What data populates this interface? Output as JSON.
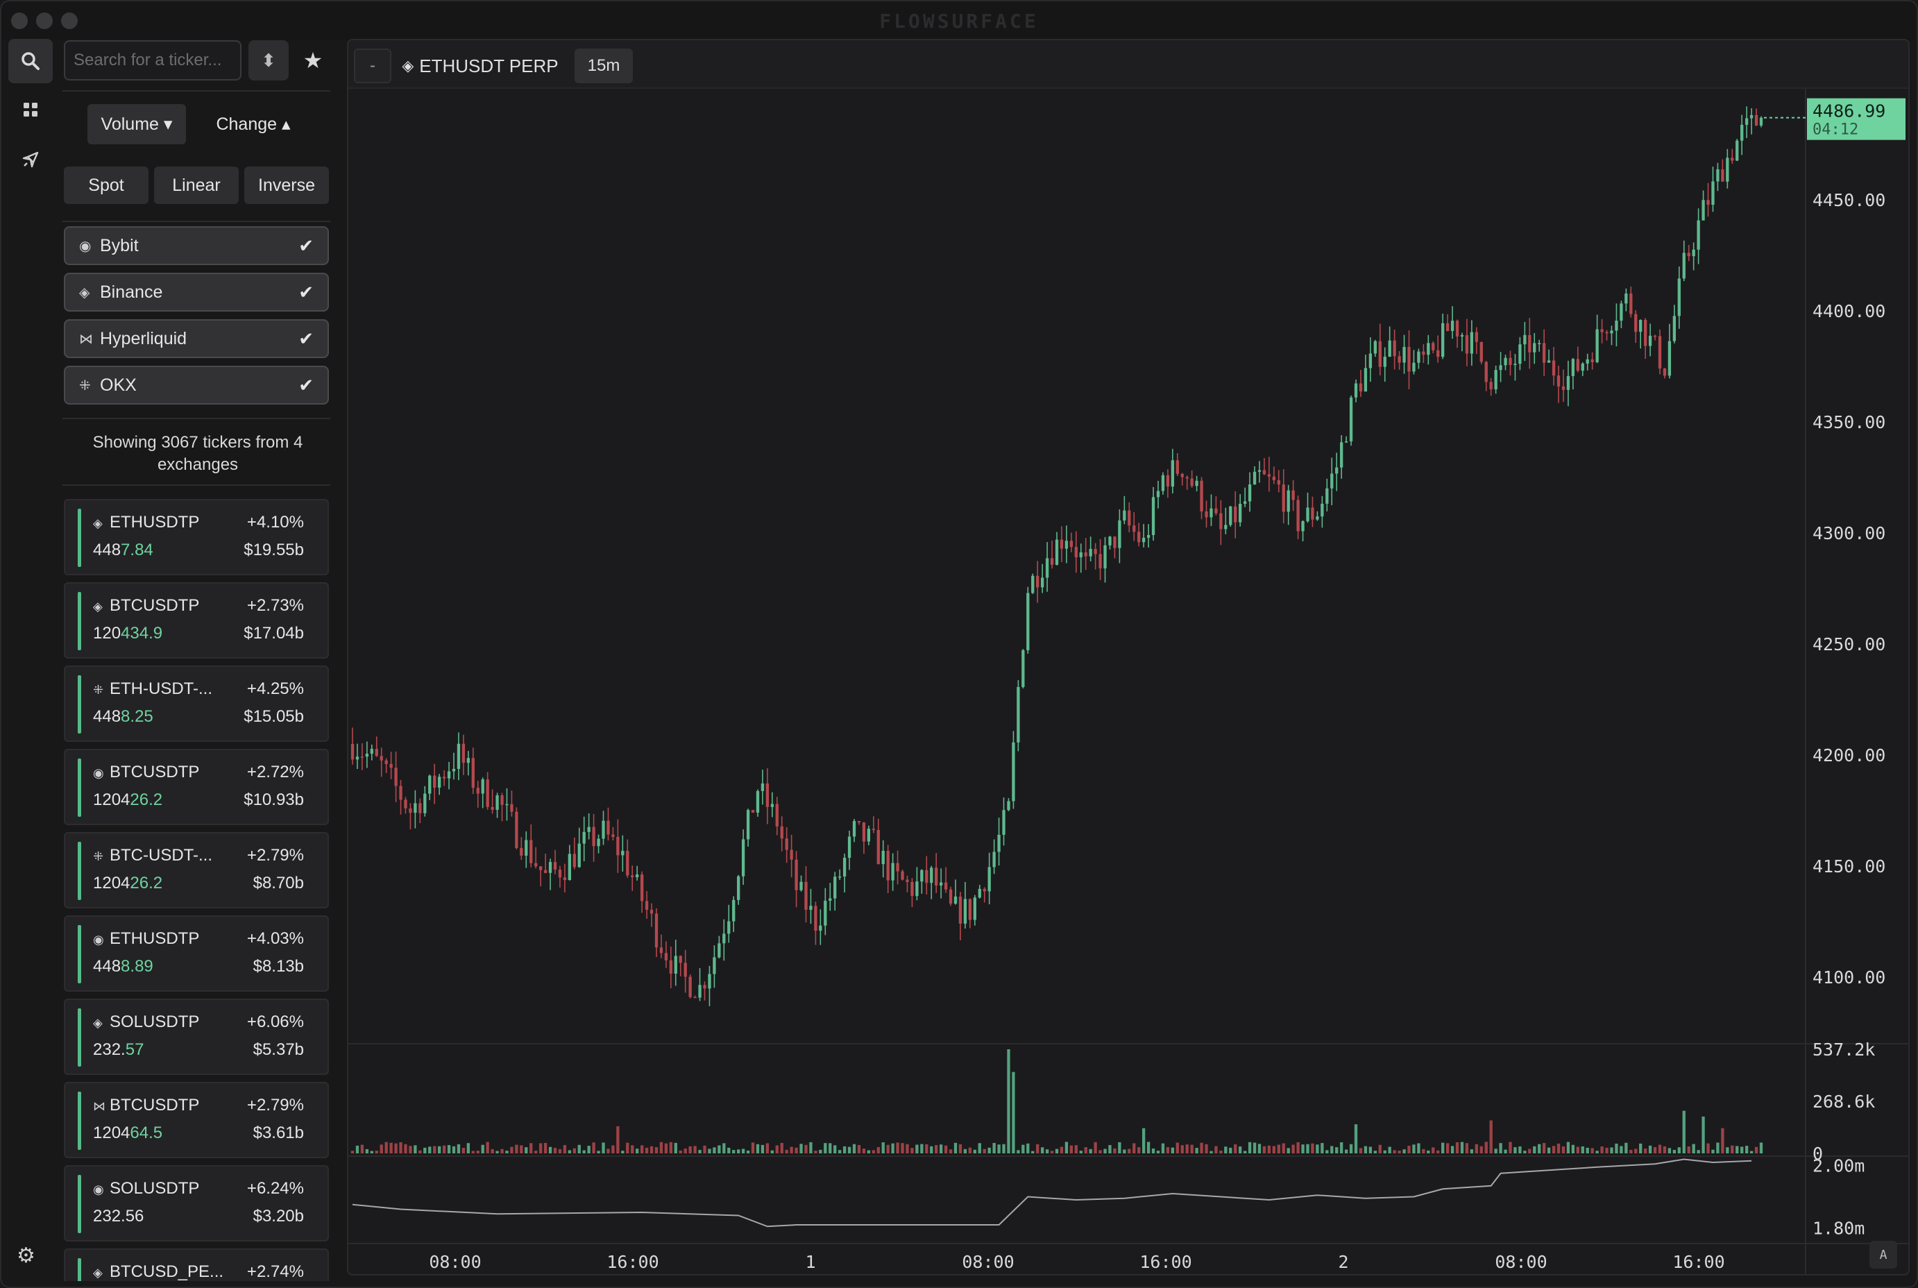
{
  "app": {
    "title": "FLOWSURFACE"
  },
  "sidebar": {
    "search_placeholder": "Search for a ticker...",
    "sort_tabs": [
      {
        "label": "Volume",
        "arrow": "▾"
      },
      {
        "label": "Change",
        "arrow": "▴"
      }
    ],
    "market_types": [
      "Spot",
      "Linear",
      "Inverse"
    ],
    "exchanges": [
      {
        "label": "Bybit",
        "icon": "bybit-icon"
      },
      {
        "label": "Binance",
        "icon": "binance-icon"
      },
      {
        "label": "Hyperliquid",
        "icon": "hyperliquid-icon"
      },
      {
        "label": "OKX",
        "icon": "okx-icon"
      }
    ],
    "showing_text": "Showing 3067 tickers from 4 exchanges",
    "tickers": [
      {
        "exchange": "binance",
        "symbol": "ETHUSDTP",
        "price_main": "448",
        "price_tail": "7.84",
        "change": "+4.10%",
        "volume": "$19.55b"
      },
      {
        "exchange": "binance",
        "symbol": "BTCUSDTP",
        "price_main": "120",
        "price_tail": "434.9",
        "change": "+2.73%",
        "volume": "$17.04b"
      },
      {
        "exchange": "okx",
        "symbol": "ETH-USDT-...",
        "price_main": "448",
        "price_tail": "8.25",
        "change": "+4.25%",
        "volume": "$15.05b"
      },
      {
        "exchange": "bybit",
        "symbol": "BTCUSDTP",
        "price_main": "1204",
        "price_tail": "26.2",
        "change": "+2.72%",
        "volume": "$10.93b"
      },
      {
        "exchange": "okx",
        "symbol": "BTC-USDT-...",
        "price_main": "1204",
        "price_tail": "26.2",
        "change": "+2.79%",
        "volume": "$8.70b"
      },
      {
        "exchange": "bybit",
        "symbol": "ETHUSDTP",
        "price_main": "448",
        "price_tail": "8.89",
        "change": "+4.03%",
        "volume": "$8.13b"
      },
      {
        "exchange": "binance",
        "symbol": "SOLUSDTP",
        "price_main": "232.",
        "price_tail": "57",
        "change": "+6.06%",
        "volume": "$5.37b"
      },
      {
        "exchange": "hyperliquid",
        "symbol": "BTCUSDTP",
        "price_main": "1204",
        "price_tail": "64.5",
        "change": "+2.79%",
        "volume": "$3.61b"
      },
      {
        "exchange": "bybit",
        "symbol": "SOLUSDTP",
        "price_main": "232.56",
        "price_tail": "",
        "change": "+6.24%",
        "volume": "$3.20b"
      },
      {
        "exchange": "binance",
        "symbol": "BTCUSD_PE...",
        "price_main": "",
        "price_tail": "",
        "change": "+2.74%",
        "volume": ""
      }
    ]
  },
  "chart_header": {
    "minimize_label": "-",
    "ticker_label": "ETHUSDT PERP",
    "timeframe": "15m",
    "corner_label": "A"
  },
  "colors": {
    "up": "#5fb98f",
    "down": "#b4494e",
    "accent": "#6fd3a0"
  },
  "chart_data": [
    {
      "type": "candlestick",
      "ylim": [
        4070,
        4500
      ],
      "y_ticks": [
        "4450.00",
        "4400.00",
        "4350.00",
        "4300.00",
        "4250.00",
        "4200.00",
        "4150.00",
        "4100.00"
      ],
      "y_tick_values": [
        4450,
        4400,
        4350,
        4300,
        4250,
        4200,
        4150,
        4100
      ],
      "x_ticks": [
        "08:00",
        "16:00",
        "1",
        "08:00",
        "16:00",
        "2",
        "08:00",
        "16:00"
      ],
      "last_price": "4486.99",
      "last_price_value": 4486.99,
      "countdown": "04:12",
      "close_path": [
        [
          0,
          4205
        ],
        [
          6,
          4195
        ],
        [
          12,
          4175
        ],
        [
          18,
          4190
        ],
        [
          22,
          4200
        ],
        [
          26,
          4185
        ],
        [
          30,
          4180
        ],
        [
          34,
          4165
        ],
        [
          40,
          4145
        ],
        [
          44,
          4150
        ],
        [
          48,
          4160
        ],
        [
          52,
          4165
        ],
        [
          56,
          4155
        ],
        [
          60,
          4135
        ],
        [
          64,
          4115
        ],
        [
          68,
          4100
        ],
        [
          72,
          4095
        ],
        [
          75,
          4110
        ],
        [
          78,
          4130
        ],
        [
          81,
          4160
        ],
        [
          84,
          4185
        ],
        [
          88,
          4170
        ],
        [
          92,
          4140
        ],
        [
          96,
          4125
        ],
        [
          100,
          4140
        ],
        [
          104,
          4165
        ],
        [
          108,
          4160
        ],
        [
          112,
          4145
        ],
        [
          116,
          4140
        ],
        [
          120,
          4145
        ],
        [
          124,
          4130
        ],
        [
          128,
          4130
        ],
        [
          132,
          4150
        ],
        [
          136,
          4175
        ],
        [
          138,
          4230
        ],
        [
          140,
          4275
        ],
        [
          144,
          4290
        ],
        [
          148,
          4300
        ],
        [
          152,
          4285
        ],
        [
          156,
          4290
        ],
        [
          160,
          4305
        ],
        [
          164,
          4295
        ],
        [
          168,
          4325
        ],
        [
          172,
          4330
        ],
        [
          176,
          4315
        ],
        [
          180,
          4300
        ],
        [
          184,
          4310
        ],
        [
          188,
          4325
        ],
        [
          192,
          4320
        ],
        [
          196,
          4305
        ],
        [
          200,
          4310
        ],
        [
          204,
          4330
        ],
        [
          208,
          4365
        ],
        [
          212,
          4380
        ],
        [
          216,
          4385
        ],
        [
          220,
          4375
        ],
        [
          224,
          4380
        ],
        [
          228,
          4395
        ],
        [
          232,
          4385
        ],
        [
          236,
          4370
        ],
        [
          240,
          4375
        ],
        [
          244,
          4385
        ],
        [
          248,
          4375
        ],
        [
          252,
          4370
        ],
        [
          256,
          4380
        ],
        [
          260,
          4395
        ],
        [
          264,
          4405
        ],
        [
          268,
          4390
        ],
        [
          272,
          4375
        ],
        [
          276,
          4420
        ],
        [
          280,
          4445
        ],
        [
          284,
          4465
        ],
        [
          288,
          4480
        ],
        [
          292,
          4486.99
        ]
      ]
    },
    {
      "type": "bar",
      "label": "volume",
      "ylim": [
        0,
        537200
      ],
      "y_ticks": [
        "537.2k",
        "268.6k",
        "0"
      ],
      "y_tick_values": [
        537200,
        268600,
        0
      ],
      "spikes": [
        [
          136,
          537200
        ],
        [
          137,
          420000
        ],
        [
          55,
          140000
        ],
        [
          164,
          130000
        ],
        [
          208,
          150000
        ],
        [
          236,
          170000
        ],
        [
          276,
          220000
        ],
        [
          280,
          190000
        ],
        [
          284,
          130000
        ]
      ],
      "baseline": 40000
    },
    {
      "type": "line",
      "label": "open interest",
      "ylim": [
        1.75,
        2.03
      ],
      "y_ticks": [
        "2.00m",
        "1.80m"
      ],
      "y_tick_values": [
        2.0,
        1.8
      ],
      "points": [
        [
          0,
          1.875
        ],
        [
          10,
          1.86
        ],
        [
          30,
          1.845
        ],
        [
          60,
          1.85
        ],
        [
          80,
          1.84
        ],
        [
          86,
          1.805
        ],
        [
          92,
          1.81
        ],
        [
          110,
          1.81
        ],
        [
          134,
          1.81
        ],
        [
          136,
          1.84
        ],
        [
          140,
          1.9
        ],
        [
          150,
          1.89
        ],
        [
          160,
          1.895
        ],
        [
          170,
          1.91
        ],
        [
          180,
          1.9
        ],
        [
          190,
          1.89
        ],
        [
          200,
          1.905
        ],
        [
          210,
          1.895
        ],
        [
          220,
          1.9
        ],
        [
          226,
          1.925
        ],
        [
          236,
          1.935
        ],
        [
          238,
          1.975
        ],
        [
          248,
          1.985
        ],
        [
          258,
          1.995
        ],
        [
          270,
          2.005
        ],
        [
          276,
          2.02
        ],
        [
          282,
          2.01
        ],
        [
          290,
          2.015
        ]
      ]
    }
  ]
}
